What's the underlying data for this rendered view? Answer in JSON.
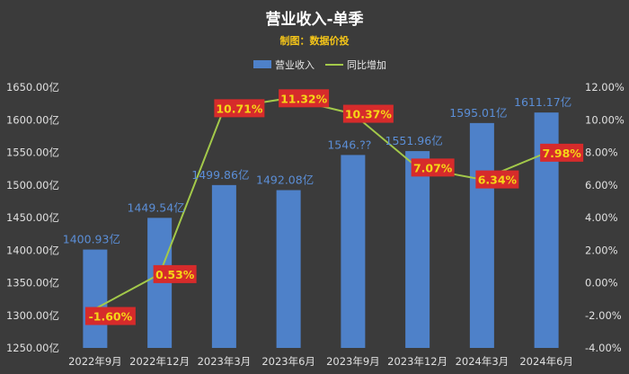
{
  "header": {
    "title": "营业收入-单季",
    "subtitle": "制图：数据价投"
  },
  "chart_data": {
    "type": "bar",
    "categories": [
      "2022年9月",
      "2022年12月",
      "2023年3月",
      "2023年6月",
      "2023年9月",
      "2023年12月",
      "2024年3月",
      "2024年6月"
    ],
    "series": [
      {
        "name": "营业收入",
        "type": "bar",
        "axis": "left",
        "values": [
          1400.93,
          1449.54,
          1499.86,
          1492.08,
          1546.0,
          1551.96,
          1595.01,
          1611.17
        ],
        "labels": [
          "1400.93亿",
          "1449.54亿",
          "1499.86亿",
          "1492.08亿",
          "1546.??",
          "1551.96亿",
          "1595.01亿",
          "1611.17亿"
        ],
        "color": "#4e81c9"
      },
      {
        "name": "同比增加",
        "type": "line",
        "axis": "right",
        "values": [
          -1.6,
          0.53,
          10.71,
          11.32,
          10.37,
          7.07,
          6.34,
          7.98
        ],
        "labels": [
          "-1.60%",
          "0.53%",
          "10.71%",
          "11.32%",
          "10.37%",
          "7.07%",
          "6.34%",
          "7.98%"
        ],
        "color": "#a3c94a"
      }
    ],
    "left_axis": {
      "ylim": [
        1250,
        1650
      ],
      "ticks": [
        "1250.00亿",
        "1300.00亿",
        "1350.00亿",
        "1400.00亿",
        "1450.00亿",
        "1500.00亿",
        "1550.00亿",
        "1600.00亿",
        "1650.00亿"
      ],
      "tick_values": [
        1250,
        1300,
        1350,
        1400,
        1450,
        1500,
        1550,
        1600,
        1650
      ]
    },
    "right_axis": {
      "ylim": [
        -4,
        12
      ],
      "ticks": [
        "-4.00%",
        "-2.00%",
        "0.00%",
        "2.00%",
        "4.00%",
        "6.00%",
        "8.00%",
        "10.00%",
        "12.00%"
      ],
      "tick_values": [
        -4,
        -2,
        0,
        2,
        4,
        6,
        8,
        10,
        12
      ]
    },
    "legend_position": "top-center",
    "grid": false
  }
}
